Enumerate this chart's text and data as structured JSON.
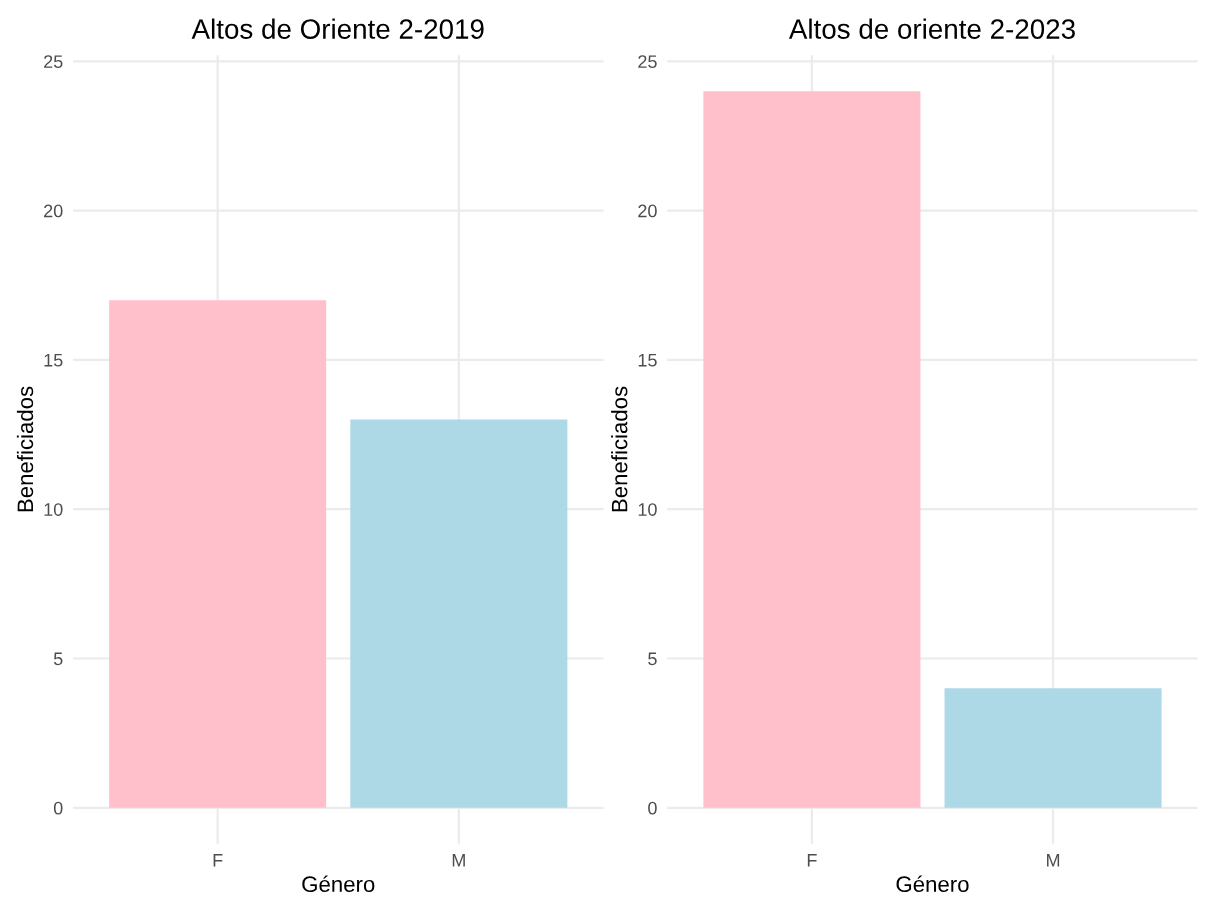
{
  "chart_data": [
    {
      "type": "bar",
      "title": "Altos de Oriente 2-2019",
      "xlabel": "Género",
      "ylabel": "Beneficiados",
      "categories": [
        "F",
        "M"
      ],
      "values": [
        17,
        13
      ],
      "colors": [
        "#ffc0cb",
        "#add8e6"
      ],
      "ylim": [
        -1.2,
        25.2
      ],
      "yticks": [
        0,
        5,
        10,
        15,
        20,
        25
      ],
      "grid": true,
      "legend": false
    },
    {
      "type": "bar",
      "title": "Altos de oriente 2-2023",
      "xlabel": "Género",
      "ylabel": "Beneficiados",
      "categories": [
        "F",
        "M"
      ],
      "values": [
        24,
        4
      ],
      "colors": [
        "#ffc0cb",
        "#add8e6"
      ],
      "ylim": [
        -1.2,
        25.2
      ],
      "yticks": [
        0,
        5,
        10,
        15,
        20,
        25
      ],
      "grid": true,
      "legend": false
    }
  ]
}
